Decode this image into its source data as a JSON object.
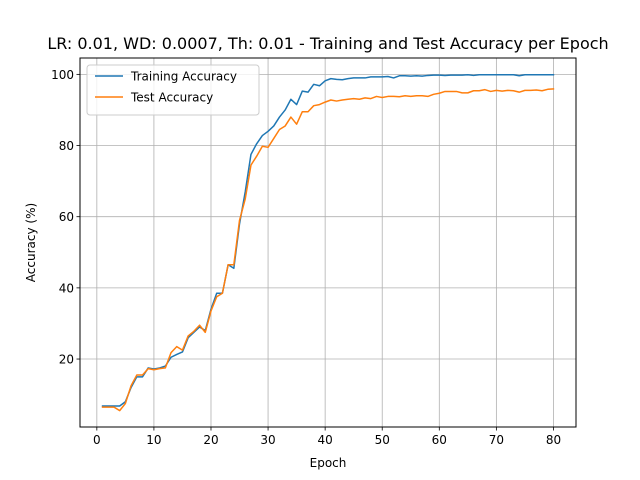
{
  "chart_data": {
    "type": "line",
    "title": "LR: 0.01, WD: 0.0007, Th: 0.01 - Training and Test Accuracy per Epoch",
    "xlabel": "Epoch",
    "ylabel": "Accuracy (%)",
    "xlim": [
      -2.95,
      83.95
    ],
    "ylim": [
      0.9,
      104.6
    ],
    "xticks": [
      0,
      10,
      20,
      30,
      40,
      50,
      60,
      70,
      80
    ],
    "yticks": [
      20,
      40,
      60,
      80,
      100
    ],
    "grid": true,
    "legend_position": "top-left",
    "x": [
      1,
      2,
      3,
      4,
      5,
      6,
      7,
      8,
      9,
      10,
      11,
      12,
      13,
      14,
      15,
      16,
      17,
      18,
      19,
      20,
      21,
      22,
      23,
      24,
      25,
      26,
      27,
      28,
      29,
      30,
      31,
      32,
      33,
      34,
      35,
      36,
      37,
      38,
      39,
      40,
      41,
      42,
      43,
      44,
      45,
      46,
      47,
      48,
      49,
      50,
      51,
      52,
      53,
      54,
      55,
      56,
      57,
      58,
      59,
      60,
      61,
      62,
      63,
      64,
      65,
      66,
      67,
      68,
      69,
      70,
      71,
      72,
      73,
      74,
      75,
      76,
      77,
      78,
      79,
      80
    ],
    "series": [
      {
        "name": "Training Accuracy",
        "color": "#1f77b4",
        "values": [
          6.8,
          6.8,
          6.8,
          6.8,
          8.0,
          12.0,
          15.0,
          15.0,
          17.5,
          17.2,
          17.5,
          18.0,
          20.5,
          21.3,
          22.0,
          26.0,
          27.5,
          29.0,
          28.0,
          34.0,
          38.5,
          38.5,
          46.5,
          45.5,
          58.0,
          67.0,
          77.5,
          80.5,
          82.8,
          84.0,
          85.5,
          88.0,
          90.0,
          93.0,
          91.5,
          95.3,
          95.0,
          97.2,
          96.8,
          98.2,
          98.8,
          98.6,
          98.5,
          98.8,
          99.0,
          99.0,
          99.0,
          99.3,
          99.3,
          99.3,
          99.4,
          99.0,
          99.6,
          99.6,
          99.5,
          99.6,
          99.5,
          99.7,
          99.8,
          99.8,
          99.7,
          99.8,
          99.8,
          99.8,
          99.9,
          99.7,
          99.9,
          99.9,
          99.9,
          99.9,
          99.9,
          99.9,
          99.9,
          99.6,
          99.9,
          99.9,
          99.9,
          99.9,
          99.9,
          99.9
        ]
      },
      {
        "name": "Test Accuracy",
        "color": "#ff7f0e",
        "values": [
          6.5,
          6.5,
          6.5,
          5.5,
          7.5,
          12.5,
          15.5,
          15.5,
          17.3,
          17.0,
          17.3,
          17.5,
          21.8,
          23.5,
          22.5,
          26.5,
          27.8,
          29.5,
          27.5,
          33.5,
          37.5,
          38.5,
          46.5,
          46.5,
          59.0,
          65.0,
          74.5,
          77.0,
          79.8,
          79.5,
          82.0,
          84.5,
          85.5,
          88.0,
          86.0,
          89.5,
          89.5,
          91.2,
          91.5,
          92.2,
          92.8,
          92.5,
          92.8,
          93.0,
          93.2,
          93.0,
          93.4,
          93.2,
          93.8,
          93.5,
          93.8,
          93.8,
          93.7,
          94.0,
          93.8,
          94.0,
          94.0,
          93.8,
          94.4,
          94.7,
          95.2,
          95.2,
          95.2,
          94.8,
          94.8,
          95.4,
          95.4,
          95.7,
          95.2,
          95.5,
          95.3,
          95.5,
          95.4,
          95.0,
          95.5,
          95.5,
          95.6,
          95.4,
          95.8,
          95.9
        ]
      }
    ]
  }
}
